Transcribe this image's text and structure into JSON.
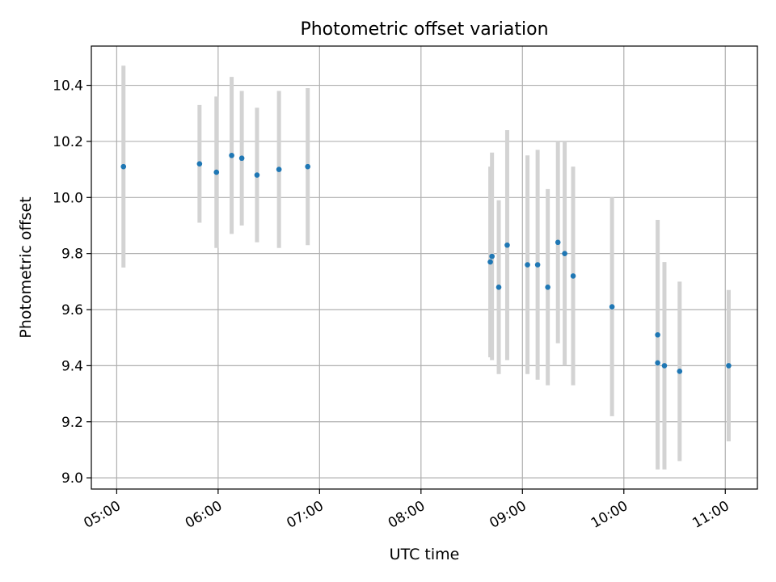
{
  "chart_data": {
    "type": "scatter",
    "title": "Photometric offset variation",
    "xlabel": "UTC time",
    "ylabel": "Photometric offset",
    "x_tick_labels": [
      "05:00",
      "06:00",
      "07:00",
      "08:00",
      "09:00",
      "10:00",
      "11:00"
    ],
    "y_tick_labels": [
      "9.0",
      "9.2",
      "9.4",
      "9.6",
      "9.8",
      "10.0",
      "10.2",
      "10.4"
    ],
    "xlim": [
      "04:45",
      "11:19"
    ],
    "ylim": [
      8.96,
      10.54
    ],
    "grid": true,
    "marker_color": "#1f77b4",
    "errorbar_color": "#d3d3d3",
    "series": [
      {
        "points": [
          {
            "x": "05:04",
            "y": 10.11,
            "yerr": 0.36
          },
          {
            "x": "05:49",
            "y": 10.12,
            "yerr": 0.21
          },
          {
            "x": "05:59",
            "y": 10.09,
            "yerr": 0.27
          },
          {
            "x": "06:08",
            "y": 10.15,
            "yerr": 0.28
          },
          {
            "x": "06:14",
            "y": 10.14,
            "yerr": 0.24
          },
          {
            "x": "06:23",
            "y": 10.08,
            "yerr": 0.24
          },
          {
            "x": "06:36",
            "y": 10.1,
            "yerr": 0.28
          },
          {
            "x": "06:53",
            "y": 10.11,
            "yerr": 0.28
          },
          {
            "x": "08:41",
            "y": 9.77,
            "yerr": 0.34
          },
          {
            "x": "08:42",
            "y": 9.79,
            "yerr": 0.37
          },
          {
            "x": "08:46",
            "y": 9.68,
            "yerr": 0.31
          },
          {
            "x": "08:51",
            "y": 9.83,
            "yerr": 0.41
          },
          {
            "x": "09:03",
            "y": 9.76,
            "yerr": 0.39
          },
          {
            "x": "09:09",
            "y": 9.76,
            "yerr": 0.41
          },
          {
            "x": "09:15",
            "y": 9.68,
            "yerr": 0.35
          },
          {
            "x": "09:21",
            "y": 9.84,
            "yerr": 0.36
          },
          {
            "x": "09:25",
            "y": 9.8,
            "yerr": 0.4
          },
          {
            "x": "09:30",
            "y": 9.72,
            "yerr": 0.39
          },
          {
            "x": "09:53",
            "y": 9.61,
            "yerr": 0.39
          },
          {
            "x": "10:20",
            "y": 9.51,
            "yerr": 0.41
          },
          {
            "x": "10:20",
            "y": 9.41,
            "yerr": 0.38
          },
          {
            "x": "10:24",
            "y": 9.4,
            "yerr": 0.37
          },
          {
            "x": "10:33",
            "y": 9.38,
            "yerr": 0.32
          },
          {
            "x": "11:02",
            "y": 9.4,
            "yerr": 0.27
          }
        ]
      }
    ]
  }
}
